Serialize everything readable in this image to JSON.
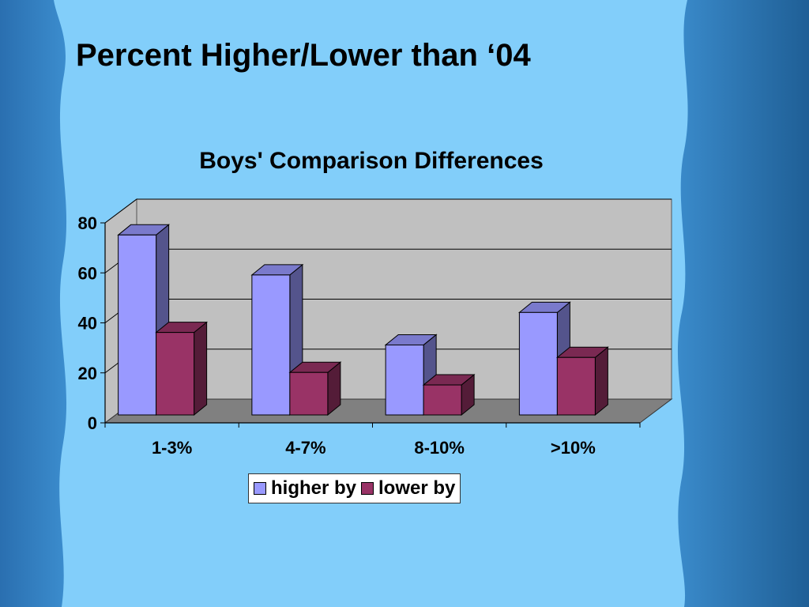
{
  "slide": {
    "title": "Percent Higher/Lower than ‘04"
  },
  "colors": {
    "background": "#82cefa",
    "higher": "#9999ff",
    "lower": "#993366",
    "wall": "#c0c0c0",
    "floor": "#808080"
  },
  "chart_data": {
    "type": "bar",
    "title": "Boys' Comparison Differences",
    "categories": [
      "1-3%",
      "4-7%",
      "8-10%",
      ">10%"
    ],
    "series": [
      {
        "name": "higher by",
        "values": [
          72,
          56,
          28,
          41
        ]
      },
      {
        "name": "lower by",
        "values": [
          33,
          17,
          12,
          23
        ]
      }
    ],
    "ylim": [
      0,
      80
    ],
    "yticks": [
      "0",
      "20",
      "40",
      "60",
      "80"
    ],
    "grid": true,
    "legend": "bottom",
    "three_d": true
  }
}
